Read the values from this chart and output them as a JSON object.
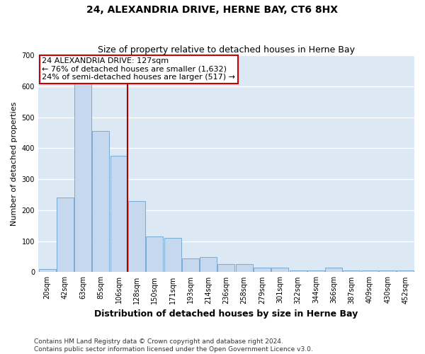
{
  "title": "24, ALEXANDRIA DRIVE, HERNE BAY, CT6 8HX",
  "subtitle": "Size of property relative to detached houses in Herne Bay",
  "xlabel": "Distribution of detached houses by size in Herne Bay",
  "ylabel": "Number of detached properties",
  "categories": [
    "20sqm",
    "42sqm",
    "63sqm",
    "85sqm",
    "106sqm",
    "128sqm",
    "150sqm",
    "171sqm",
    "193sqm",
    "214sqm",
    "236sqm",
    "258sqm",
    "279sqm",
    "301sqm",
    "322sqm",
    "344sqm",
    "366sqm",
    "387sqm",
    "409sqm",
    "430sqm",
    "452sqm"
  ],
  "values": [
    10,
    240,
    630,
    455,
    375,
    230,
    115,
    110,
    45,
    50,
    25,
    25,
    15,
    15,
    5,
    5,
    15,
    5,
    5,
    5,
    5
  ],
  "bar_color": "#c5d8ee",
  "bar_edge_color": "#7aaad4",
  "vline_x_index": 5,
  "vline_color": "#aa0000",
  "annotation_text": "24 ALEXANDRIA DRIVE: 127sqm\n← 76% of detached houses are smaller (1,632)\n24% of semi-detached houses are larger (517) →",
  "annotation_box_color": "#ffffff",
  "annotation_box_edge_color": "#cc0000",
  "footer_text": "Contains HM Land Registry data © Crown copyright and database right 2024.\nContains public sector information licensed under the Open Government Licence v3.0.",
  "ylim": [
    0,
    700
  ],
  "yticks": [
    0,
    100,
    200,
    300,
    400,
    500,
    600,
    700
  ],
  "background_color": "#dde8f5",
  "grid_color": "#ffffff",
  "title_fontsize": 10,
  "subtitle_fontsize": 9,
  "xlabel_fontsize": 9,
  "ylabel_fontsize": 8,
  "tick_fontsize": 7,
  "annotation_fontsize": 8,
  "footer_fontsize": 6.5
}
